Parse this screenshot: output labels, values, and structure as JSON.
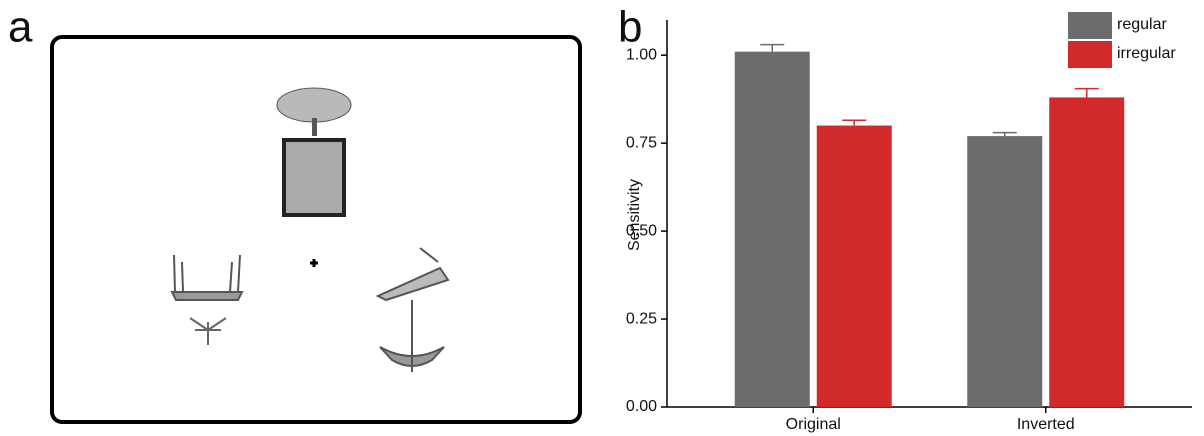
{
  "panel_labels": [
    "a",
    "b"
  ],
  "chart_data": {
    "type": "bar",
    "ylabel": "Sensitivity",
    "categories": [
      "Original",
      "Inverted"
    ],
    "series": [
      {
        "name": "regular",
        "color": "#6d6c6d",
        "values": [
          1.01,
          0.77
        ],
        "errors": [
          0.02,
          0.01
        ]
      },
      {
        "name": "irregular",
        "color": "#d22a2a",
        "values": [
          0.8,
          0.88
        ],
        "errors": [
          0.015,
          0.025
        ]
      }
    ],
    "ylim": [
      0,
      1.1
    ],
    "yticks": [
      {
        "value": 0,
        "label": "0.00"
      },
      {
        "value": 0.25,
        "label": "0.25"
      },
      {
        "value": 0.5,
        "label": "0.50"
      },
      {
        "value": 0.75,
        "label": "0.75"
      },
      {
        "value": 1,
        "label": "1.00"
      }
    ],
    "legend": "top-right"
  }
}
